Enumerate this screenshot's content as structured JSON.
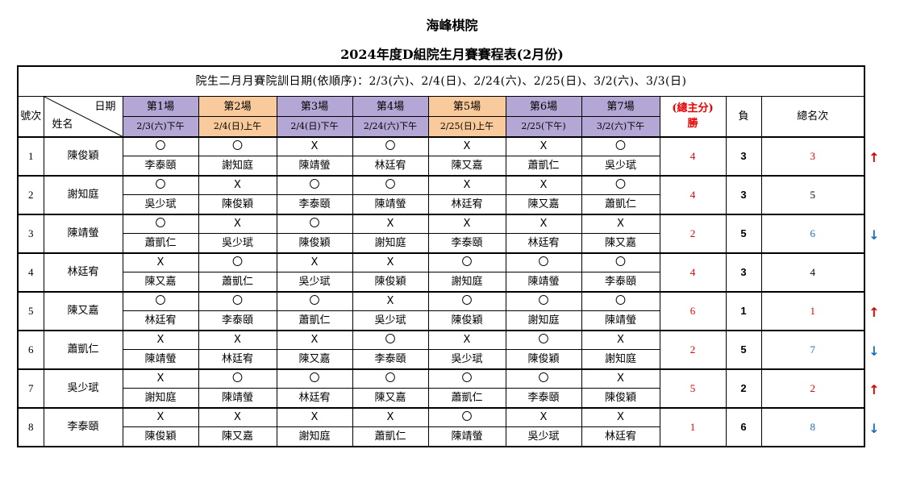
{
  "header": {
    "org": "海峰棋院",
    "subtitle": "2024年度D組院生月賽賽程表(2月份)",
    "schedule": "院生二月月賽院訓日期(依順序)：2/3(六)、2/4(日)、2/24(六)、2/25(日)、3/2(六)、3/3(日)"
  },
  "columns": {
    "seq": "號次",
    "date_label": "日期",
    "name_label": "姓名",
    "rounds": [
      {
        "label": "第1場",
        "date": "2/3(六)下午",
        "color": "#b4a7d6"
      },
      {
        "label": "第2場",
        "date": "2/4(日)上午",
        "color": "#f9cb9c"
      },
      {
        "label": "第3場",
        "date": "2/4(日)下午",
        "color": "#b4a7d6"
      },
      {
        "label": "第4場",
        "date": "2/24(六)下午",
        "color": "#b4a7d6"
      },
      {
        "label": "第5場",
        "date": "2/25(日)上午",
        "color": "#f9cb9c"
      },
      {
        "label": "第6場",
        "date": "2/25(下午)",
        "color": "#b4a7d6"
      },
      {
        "label": "第7場",
        "date": "3/2(六)下午",
        "color": "#b4a7d6"
      }
    ],
    "wins_top": "(總主分)",
    "wins_bottom": "勝",
    "losses": "負",
    "rank": "總名次"
  },
  "colors": {
    "win_red": "#e00000",
    "rank_blue": "#1f6fc1",
    "arrow_up": "#e00000",
    "arrow_down": "#1f6fc1"
  },
  "players": [
    {
      "no": "1",
      "name": "陳俊穎",
      "results": [
        "〇",
        "〇",
        "X",
        "〇",
        "X",
        "X",
        "〇"
      ],
      "opponents": [
        "李泰頤",
        "謝知庭",
        "陳靖螢",
        "林廷宥",
        "陳又嘉",
        "蕭凱仁",
        "吳少珷"
      ],
      "wins": "4",
      "losses": "3",
      "rank": "3",
      "rank_color": "red",
      "arrow": "up"
    },
    {
      "no": "2",
      "name": "謝知庭",
      "results": [
        "〇",
        "X",
        "〇",
        "〇",
        "X",
        "X",
        "〇"
      ],
      "opponents": [
        "吳少珷",
        "陳俊穎",
        "李泰頤",
        "陳靖螢",
        "林廷宥",
        "陳又嘉",
        "蕭凱仁"
      ],
      "wins": "4",
      "losses": "3",
      "rank": "5",
      "rank_color": "black",
      "arrow": ""
    },
    {
      "no": "3",
      "name": "陳靖螢",
      "results": [
        "〇",
        "X",
        "〇",
        "X",
        "X",
        "X",
        "X"
      ],
      "opponents": [
        "蕭凱仁",
        "吳少珷",
        "陳俊穎",
        "謝知庭",
        "李泰頤",
        "林廷宥",
        "陳又嘉"
      ],
      "wins": "2",
      "losses": "5",
      "rank": "6",
      "rank_color": "blue",
      "arrow": "down"
    },
    {
      "no": "4",
      "name": "林廷宥",
      "results": [
        "X",
        "〇",
        "X",
        "X",
        "〇",
        "〇",
        "〇"
      ],
      "opponents": [
        "陳又嘉",
        "蕭凱仁",
        "吳少珷",
        "陳俊穎",
        "謝知庭",
        "陳靖螢",
        "李泰頤"
      ],
      "wins": "4",
      "losses": "3",
      "rank": "4",
      "rank_color": "black",
      "arrow": ""
    },
    {
      "no": "5",
      "name": "陳又嘉",
      "results": [
        "〇",
        "〇",
        "〇",
        "X",
        "〇",
        "〇",
        "〇"
      ],
      "opponents": [
        "林廷宥",
        "李泰頤",
        "蕭凱仁",
        "吳少珷",
        "陳俊穎",
        "謝知庭",
        "陳靖螢"
      ],
      "wins": "6",
      "losses": "1",
      "rank": "1",
      "rank_color": "red",
      "arrow": "up"
    },
    {
      "no": "6",
      "name": "蕭凱仁",
      "results": [
        "X",
        "X",
        "X",
        "〇",
        "X",
        "〇",
        "X"
      ],
      "opponents": [
        "陳靖螢",
        "林廷宥",
        "陳又嘉",
        "李泰頤",
        "吳少珷",
        "陳俊穎",
        "謝知庭"
      ],
      "wins": "2",
      "losses": "5",
      "rank": "7",
      "rank_color": "blue",
      "arrow": "down"
    },
    {
      "no": "7",
      "name": "吳少珷",
      "results": [
        "X",
        "〇",
        "〇",
        "〇",
        "〇",
        "〇",
        "X"
      ],
      "opponents": [
        "謝知庭",
        "陳靖螢",
        "林廷宥",
        "陳又嘉",
        "蕭凱仁",
        "李泰頤",
        "陳俊穎"
      ],
      "wins": "5",
      "losses": "2",
      "rank": "2",
      "rank_color": "red",
      "arrow": "up"
    },
    {
      "no": "8",
      "name": "李泰頤",
      "results": [
        "X",
        "X",
        "X",
        "X",
        "〇",
        "X",
        "X"
      ],
      "opponents": [
        "陳俊穎",
        "陳又嘉",
        "謝知庭",
        "蕭凱仁",
        "陳靖螢",
        "吳少珷",
        "林廷宥"
      ],
      "wins": "1",
      "losses": "6",
      "rank": "8",
      "rank_color": "blue",
      "arrow": "down"
    }
  ]
}
